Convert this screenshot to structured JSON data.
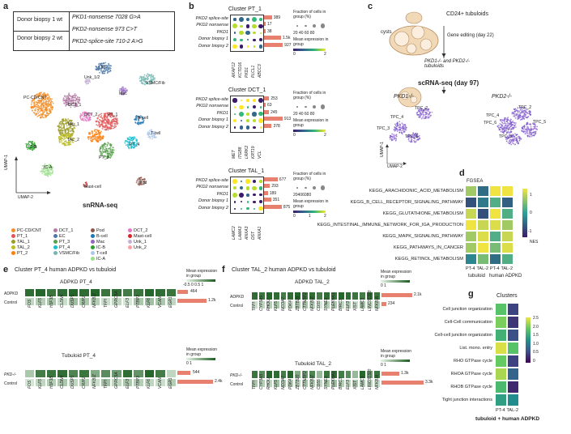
{
  "panels": {
    "a": "a",
    "b": "b",
    "c": "c",
    "d": "d",
    "e": "e",
    "f": "f",
    "g": "g"
  },
  "a": {
    "table": [
      {
        "donor": "Donor biopsy 1 wt",
        "variant": "PKD1-nonsense 7028 G>A"
      },
      {
        "donor": "Donor biopsy 2 wt",
        "variant": "PKD2-nonsense 973 C>T"
      },
      {
        "donor": "",
        "variant": "PKD2-splice-site 710-2 A>G"
      }
    ],
    "cluster_labels": [
      "EC",
      "Unk_1/2",
      "VSMC/Fib",
      "Mac",
      "PC-CD/CNT",
      "DCT_1",
      "DCT_2",
      "PT_1",
      "B-cell",
      "T-cell",
      "TAL_1",
      "TAL_2",
      "IC-B",
      "PT_4",
      "PT_3",
      "IC-A",
      "Pod",
      "Mast-cell"
    ],
    "umap1": "UMAP-1",
    "umap2": "UMAP-2",
    "title": "snRNA-seq",
    "legend": [
      {
        "name": "PC-CD/CNT",
        "color": "#f28e2b"
      },
      {
        "name": "DCT_1",
        "color": "#b07aa1"
      },
      {
        "name": "Pod",
        "color": "#8c564b"
      },
      {
        "name": "DCT_2",
        "color": "#e377c2"
      },
      {
        "name": "PT_1",
        "color": "#e15759"
      },
      {
        "name": "EC",
        "color": "#4e79a7"
      },
      {
        "name": "B-cell",
        "color": "#1f77b4"
      },
      {
        "name": "Mast-cell",
        "color": "#d62728"
      },
      {
        "name": "TAL_1",
        "color": "#9c9c2a"
      },
      {
        "name": "PT_3",
        "color": "#59a14f"
      },
      {
        "name": "Mac",
        "color": "#9467bd"
      },
      {
        "name": "Unk_1",
        "color": "#c5b0d5"
      },
      {
        "name": "TAL_2",
        "color": "#bcbd22"
      },
      {
        "name": "PT_4",
        "color": "#17becf"
      },
      {
        "name": "IC-B",
        "color": "#2ca02c"
      },
      {
        "name": "Unk_2",
        "color": "#ff9da7"
      },
      {
        "name": "PT_2",
        "color": "#ff7f0e"
      },
      {
        "name": "VSMC/Fib",
        "color": "#76b7b2"
      },
      {
        "name": "T-cell",
        "color": "#aec7e8"
      },
      {
        "name": "",
        "color": ""
      },
      {
        "name": "",
        "color": ""
      },
      {
        "name": "",
        "color": ""
      },
      {
        "name": "IC-A",
        "color": "#98df8a"
      },
      {
        "name": "",
        "color": ""
      }
    ]
  },
  "b": {
    "clusters": [
      {
        "title": "Cluster  PT_1",
        "rows": [
          "PKD2 splice-site",
          "PKD2 nonsense",
          "PKD1",
          "Donor biopsy 1",
          "Donor biopsy 2"
        ],
        "counts": [
          "389",
          "17",
          "38",
          "1.5k",
          "927"
        ],
        "genes": [
          "AKAP12",
          "KCTD16",
          "PKD1",
          "PLCL1",
          "ABCC3"
        ]
      },
      {
        "title": "Cluster  DCT_1",
        "rows": [
          "PKD2 splice-site",
          "PKD2 nonsense",
          "PKD1",
          "Donor biopsy 1",
          "Donor biopsy 2"
        ],
        "counts": [
          "253",
          "63",
          "245",
          "913",
          "378"
        ],
        "genes": [
          "MET",
          "ITGB8",
          "LRRK2",
          "KRT19",
          "VCL"
        ]
      },
      {
        "title": "Cluster  TAL_1",
        "rows": [
          "PKD2 splice-site",
          "PKD2 nonsense",
          "PKD1",
          "Donor biopsy 1",
          "Donor biopsy 2"
        ],
        "counts": [
          "677",
          "293",
          "189",
          "351",
          "875"
        ],
        "genes": [
          "LAMC2",
          "LAMA3",
          "ANXA3",
          "DST",
          "ANXA1"
        ]
      }
    ],
    "frac_title": "Fraction of cells in group (%)",
    "frac_ticks": "20 40 60 80",
    "frac_ticks_b": "20406080",
    "expr_title": "Mean expression in group",
    "expr_ticks_2": [
      "0",
      "2"
    ],
    "expr_ticks_3": [
      "0",
      "1",
      "2"
    ]
  },
  "c": {
    "tubuloids": "CD24+ tubuloids",
    "cysts": "cysts",
    "gene_editing": "Gene editing (day 22)",
    "ko": "PKD1-/- and PKD2-/- tubuloids",
    "scrna": "scRNA-seq (day 97)",
    "pkd1": "PKD1-/-",
    "pkd2": "PKD2-/-",
    "umap1": "UMAP-1",
    "umap2": "UMAP-2",
    "tpc_left": [
      "TPC_2",
      "TPC_4",
      "TPC_3",
      "TPC_1"
    ],
    "tpc_right": [
      "TPC_2",
      "TPC_6",
      "TPC_5",
      "TPC_4",
      "TPC_3"
    ]
  },
  "d": {
    "title": "FGSEA",
    "rows": [
      "KEGG_ARACHIDONIC_ACID_METABOLISM",
      "KEGG_B_CELL_RECEPTOR_SIGNALING_PATHWAY",
      "KEGG_GLUTATHIONE_METABOLISM",
      "KEGG_INTESTINAL_IMMUNE_NETWORK_FOR_IGA_PRODUCTION",
      "KEGG_MAPK_SIGNALING_PATHWAY",
      "KEGG_PATHWAYS_IN_CANCER",
      "KEGG_RETINOL_METABOLISM"
    ],
    "cols": [
      "PT-4",
      "TAL-2",
      "PT-4",
      "TAL-2"
    ],
    "groups": [
      "tubuloid",
      "human ADPKD"
    ],
    "values": [
      [
        0.6,
        -0.4,
        1.0,
        1.2
      ],
      [
        -0.6,
        -0.3,
        0.2,
        -0.5
      ],
      [
        0.8,
        -0.6,
        1.0,
        0.2
      ],
      [
        1.1,
        0.8,
        0.9,
        0.6
      ],
      [
        0.6,
        0.9,
        0.2,
        0.8
      ],
      [
        0.6,
        1.1,
        0.4,
        0.9
      ],
      [
        -0.2,
        0.4,
        -0.4,
        0.2
      ]
    ],
    "legend_ticks": [
      "1",
      "0",
      "-1"
    ],
    "legend_label": "NES"
  },
  "e": {
    "title": "Cluster PT_4 human ADPKD vs tubuloid",
    "top_title": "ADPKD PT_4",
    "bottom_title": "Tubuloid PT_4",
    "genes": [
      "FOS",
      "KLF5",
      "H3F3B",
      "CLDN4",
      "DUSP1",
      "CRIP2",
      "NFKBIZ",
      "TFPI",
      "GPRC5A",
      "ELF3",
      "PTBP3",
      "KLF6",
      "VCAN",
      "EGR1"
    ],
    "top_rows": [
      "ADPKD",
      "Control"
    ],
    "top_counts": [
      "464",
      "1.2k"
    ],
    "bottom_rows": [
      "PKD-/-",
      "Control"
    ],
    "bottom_counts": [
      "544",
      "2.4k"
    ],
    "scale_title": "Mean expression in group",
    "scale_ticks": "-0.5  0  0.5  1",
    "scale_ticks_b": "0   1",
    "top_vals": [
      [
        0.9,
        0.95,
        0.85,
        0.9,
        0.95,
        0.9,
        0.95,
        0.85,
        0.9,
        0.8,
        0.85,
        0.95,
        0.9,
        0.85
      ],
      [
        0.2,
        0.25,
        0.3,
        0.15,
        0.35,
        0.3,
        0.25,
        0.15,
        0.2,
        0.1,
        0.3,
        0.35,
        0.3,
        0.2
      ]
    ],
    "bottom_vals": [
      [
        0.3,
        0.8,
        0.85,
        0.9,
        0.75,
        0.85,
        0.5,
        0.7,
        0.6,
        0.9,
        0.65,
        0.95,
        0.8,
        0.2
      ],
      [
        0.1,
        0.2,
        0.25,
        0.3,
        0.2,
        0.25,
        0.15,
        0.35,
        0.2,
        0.3,
        0.25,
        0.2,
        0.15,
        0.25
      ]
    ]
  },
  "f": {
    "title": "Cluster TAL_2 human ADPKD vs tubuloid",
    "top_title": "ADPKD TAL_2",
    "bottom_title": "Tubuloid TAL_2",
    "genes": [
      "TFPI",
      "CYP3A5",
      "RHOU",
      "KLF5",
      "NCOA7",
      "PDK4",
      "ZBTB20",
      "CTTNBP2",
      "NFKBIZ",
      "CD55",
      "SYNE2",
      "PLEKHA1",
      "BIRC3",
      "ELF3",
      "XIST",
      "LAMC1",
      "LINC01320",
      "NFKBIA"
    ],
    "top_rows": [
      "ADPKD",
      "Control"
    ],
    "top_counts": [
      "2.1k",
      "234"
    ],
    "bottom_rows": [
      "PKD-/-",
      "Control"
    ],
    "bottom_counts": [
      "1.3k",
      "3.3k"
    ],
    "scale_title": "Mean expression in group",
    "scale_ticks": "0   1",
    "scale_ticks_b": "0   1",
    "top_vals": [
      [
        0.9,
        0.85,
        0.95,
        0.9,
        0.8,
        0.9,
        0.95,
        0.85,
        0.9,
        0.8,
        0.9,
        0.85,
        0.95,
        0.9,
        0.85,
        0.8,
        0.9,
        0.85
      ],
      [
        0.15,
        0.2,
        0.25,
        0.3,
        0.2,
        0.15,
        0.25,
        0.3,
        0.2,
        0.1,
        0.25,
        0.3,
        0.2,
        0.25,
        0.15,
        0.3,
        0.2,
        0.25
      ]
    ],
    "bottom_vals": [
      [
        0.85,
        0.7,
        0.95,
        0.9,
        0.8,
        0.95,
        0.5,
        0.6,
        0.75,
        0.4,
        0.85,
        0.9,
        0.8,
        0.7,
        0.4,
        0.95,
        0.6,
        0.85
      ],
      [
        0.3,
        0.25,
        0.2,
        0.35,
        0.3,
        0.25,
        0.2,
        0.3,
        0.25,
        0.2,
        0.3,
        0.35,
        0.25,
        0.2,
        0.3,
        0.25,
        0.2,
        0.15
      ]
    ]
  },
  "g": {
    "title": "Clusters",
    "rows": [
      "Cell junction organization",
      "Cell-Cell communication",
      "Cell-cell junction organization",
      "List.  mono. entry",
      "RHO GTPase cycle",
      "RHOA GTPase cycle",
      "RHOB GTPase cycle",
      "Tight junction interactions"
    ],
    "cols": [
      "PT-4",
      "TAL-2"
    ],
    "caption": "tubuloid + human ADPKD",
    "legend_ticks": [
      "2.5",
      "2.0",
      "1.5",
      "1.0",
      "0.5",
      "0"
    ],
    "values": [
      [
        1.8,
        0.5
      ],
      [
        2.0,
        0.4
      ],
      [
        1.6,
        0.6
      ],
      [
        2.4,
        1.8
      ],
      [
        1.9,
        0.5
      ],
      [
        2.2,
        0.8
      ],
      [
        1.7,
        0.3
      ],
      [
        1.4,
        1.2
      ]
    ]
  }
}
